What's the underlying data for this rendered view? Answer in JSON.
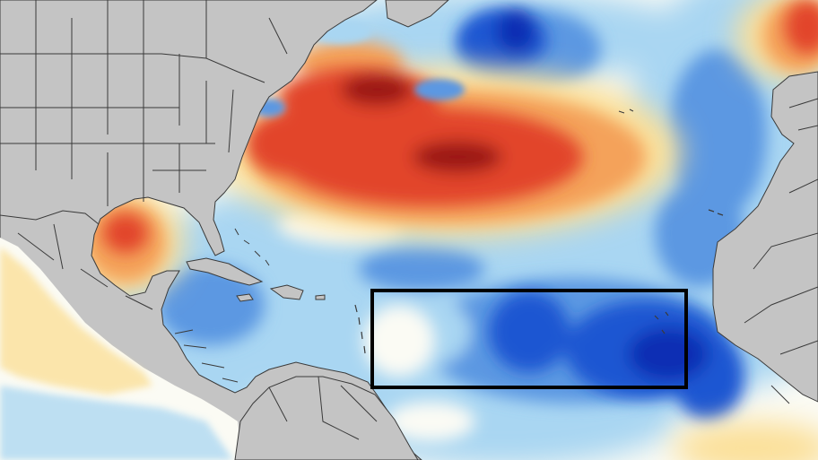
{
  "map": {
    "kind": "sea-surface-temperature-anomaly",
    "colors": {
      "land": "#c4c4c4",
      "borders": "#3a3a3a",
      "ocean_neutral": "#fbfbf4",
      "cool_light": "#a9d6f2",
      "cool": "#5b98e2",
      "cold": "#1f57d2",
      "coldest": "#0b2fb4",
      "warm_light": "#fbe09a",
      "warm": "#f4a25a",
      "hot": "#e2452c",
      "hottest": "#9b1412",
      "highlight_box": "#000000"
    },
    "regions": {
      "warm_anomalies": [
        "western-north-atlantic",
        "gulf-of-mexico",
        "eastern-pacific",
        "labrador-sea-edge"
      ],
      "cool_anomalies": [
        "main-development-region",
        "caribbean-sea",
        "eastern-tropical-atlantic",
        "subpolar-atlantic-pockets"
      ]
    },
    "highlight": {
      "region": "tropical-atlantic-main-development-region"
    }
  }
}
